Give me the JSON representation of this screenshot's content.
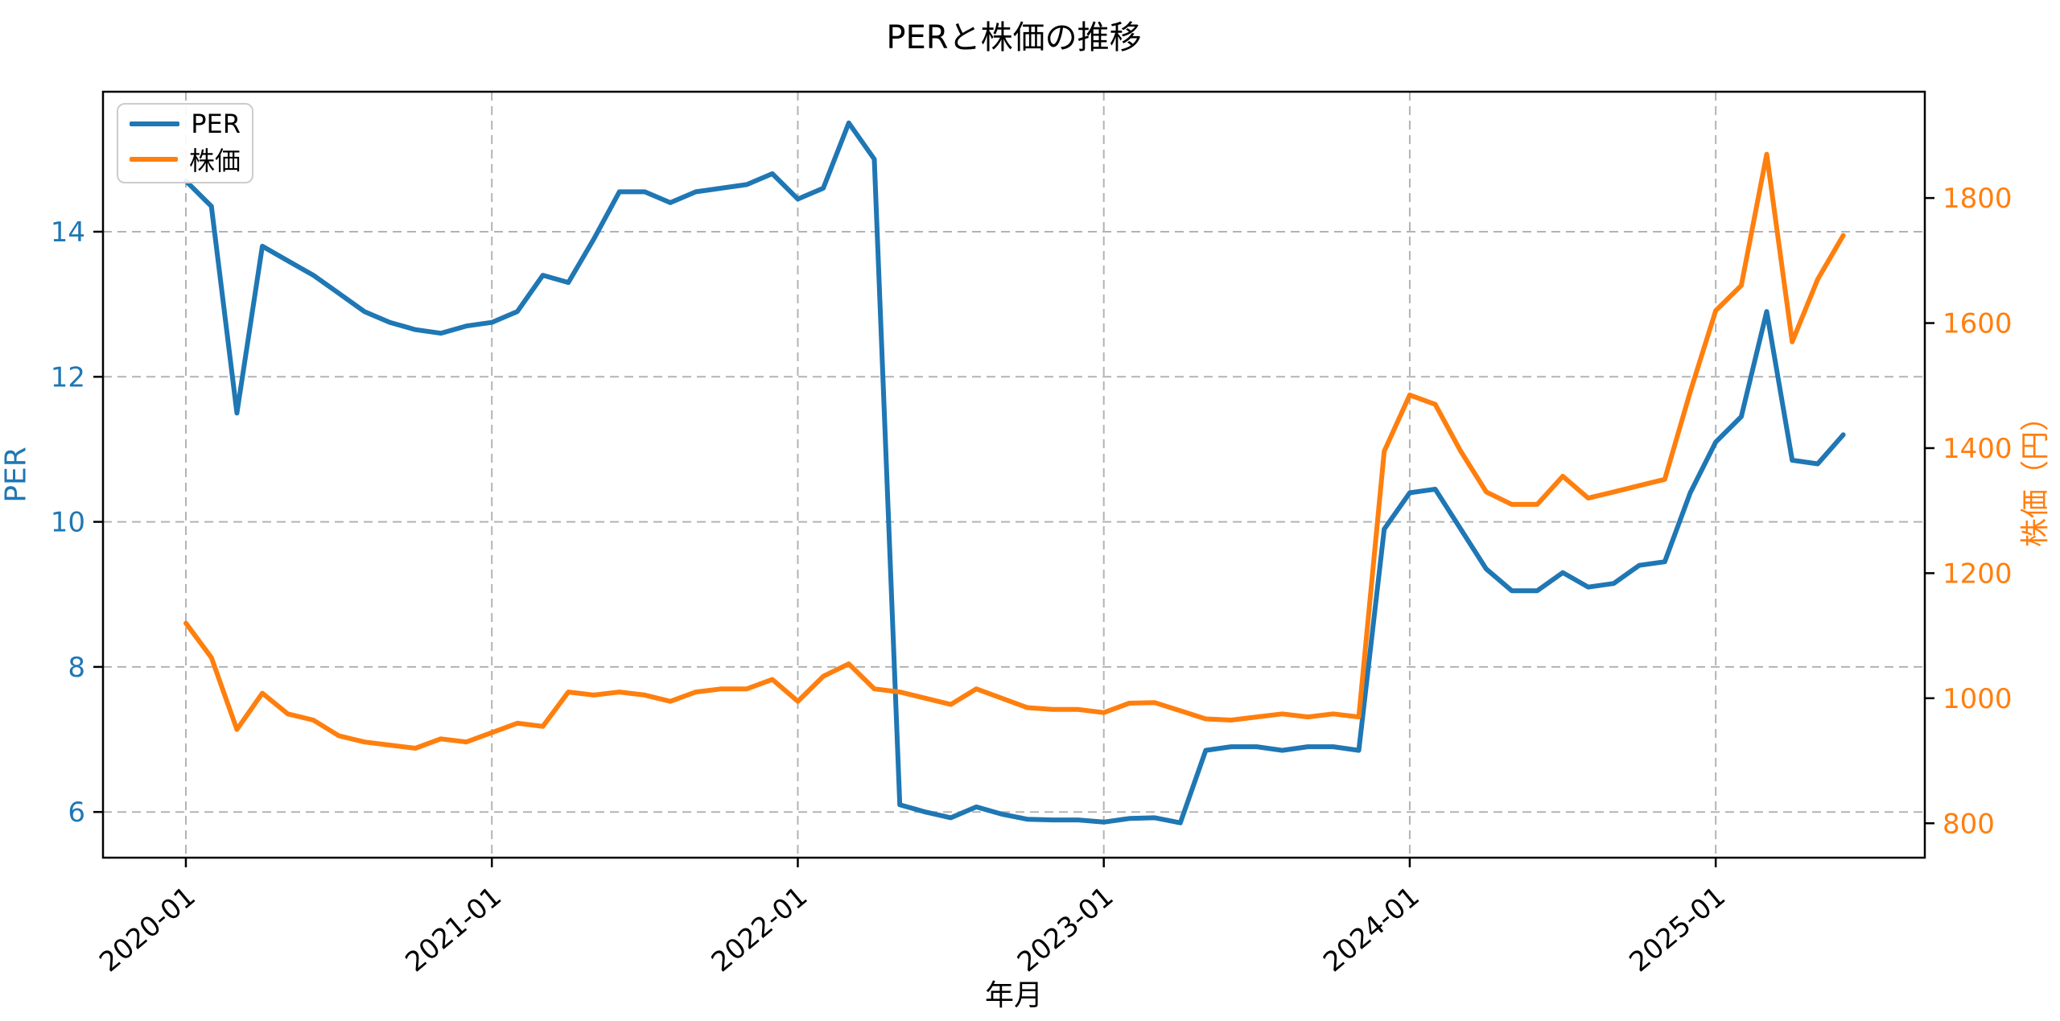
{
  "figure": {
    "title": "PERと株価の推移",
    "xlabel": "年月",
    "ylabel_left": "PER",
    "ylabel_right": "株価（円）"
  },
  "legend": {
    "per_label": "PER",
    "price_label": "株価"
  },
  "colors": {
    "per": "#1f77b4",
    "price": "#ff7f0e",
    "grid": "#b3b3b3",
    "spine": "#000000",
    "tick_text_left": "#1f77b4",
    "tick_text_right": "#ff7f0e",
    "tick_text_bottom": "#000000"
  },
  "chart_data": {
    "type": "line",
    "title": "PERと株価の推移",
    "xlabel": "年月",
    "grid": true,
    "legend_position": "upper-left",
    "x_tick_labels": [
      "2020-01",
      "2021-01",
      "2022-01",
      "2023-01",
      "2024-01",
      "2025-01"
    ],
    "x_tick_month_index": [
      0,
      12,
      24,
      36,
      48,
      60
    ],
    "y_ticks_left": [
      6,
      8,
      10,
      12,
      14
    ],
    "y_ticks_right": [
      800,
      1000,
      1200,
      1400,
      1600,
      1800
    ],
    "ylim_left": [
      5.37,
      15.93
    ],
    "ylim_right": [
      745,
      1970
    ],
    "xlim_months": [
      -3.25,
      68.2
    ],
    "x": [
      "2020-01",
      "2020-02",
      "2020-03",
      "2020-04",
      "2020-05",
      "2020-06",
      "2020-07",
      "2020-08",
      "2020-09",
      "2020-10",
      "2020-11",
      "2020-12",
      "2021-01",
      "2021-02",
      "2021-03",
      "2021-04",
      "2021-05",
      "2021-06",
      "2021-07",
      "2021-08",
      "2021-09",
      "2021-10",
      "2021-11",
      "2021-12",
      "2022-01",
      "2022-02",
      "2022-03",
      "2022-04",
      "2022-05",
      "2022-06",
      "2022-07",
      "2022-08",
      "2022-09",
      "2022-10",
      "2022-11",
      "2022-12",
      "2023-01",
      "2023-02",
      "2023-03",
      "2023-04",
      "2023-05",
      "2023-06",
      "2023-07",
      "2023-08",
      "2023-09",
      "2023-10",
      "2023-11",
      "2023-12",
      "2024-01",
      "2024-02",
      "2024-03",
      "2024-04",
      "2024-05",
      "2024-06",
      "2024-07",
      "2024-08",
      "2024-09",
      "2024-10",
      "2024-11",
      "2024-12",
      "2025-01",
      "2025-02",
      "2025-03",
      "2025-04",
      "2025-05",
      "2025-06"
    ],
    "series": [
      {
        "name": "PER",
        "axis": "left",
        "color": "#1f77b4",
        "values": [
          14.7,
          14.35,
          11.5,
          13.8,
          13.6,
          13.4,
          13.15,
          12.9,
          12.75,
          12.65,
          12.6,
          12.7,
          12.75,
          12.9,
          13.4,
          13.3,
          13.9,
          14.55,
          14.55,
          14.4,
          14.55,
          14.6,
          14.65,
          14.8,
          14.45,
          14.6,
          15.5,
          15.0,
          6.1,
          6.0,
          5.92,
          6.07,
          5.97,
          5.9,
          5.89,
          5.89,
          5.86,
          5.91,
          5.92,
          5.85,
          6.85,
          6.9,
          6.9,
          6.85,
          6.9,
          6.9,
          6.85,
          9.9,
          10.4,
          10.45,
          9.9,
          9.35,
          9.05,
          9.05,
          9.3,
          9.1,
          9.15,
          9.4,
          9.45,
          10.4,
          11.1,
          11.45,
          12.9,
          10.85,
          10.8,
          11.2
        ]
      },
      {
        "name": "株価",
        "axis": "right",
        "color": "#ff7f0e",
        "values": [
          1120,
          1065,
          950,
          1008,
          975,
          965,
          940,
          930,
          925,
          920,
          935,
          930,
          945,
          960,
          955,
          1010,
          1005,
          1010,
          1005,
          995,
          1010,
          1015,
          1015,
          1030,
          995,
          1035,
          1055,
          1015,
          1010,
          1000,
          990,
          1015,
          1000,
          985,
          982,
          982,
          977,
          992,
          993,
          980,
          967,
          965,
          970,
          975,
          970,
          975,
          970,
          1395,
          1485,
          1470,
          1395,
          1330,
          1310,
          1310,
          1355,
          1320,
          1330,
          1340,
          1350,
          1490,
          1620,
          1660,
          1870,
          1570,
          1670,
          1740
        ]
      }
    ]
  }
}
